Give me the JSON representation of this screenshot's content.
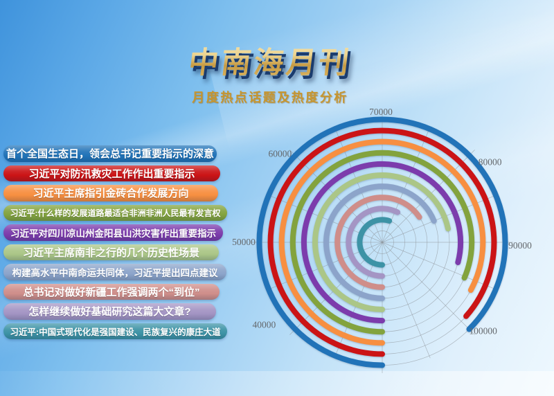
{
  "header": {
    "title": "中南海月刊",
    "subtitle": "月度热点话题及热度分析"
  },
  "chart_data": {
    "type": "radial-bar",
    "title": "月度热点话题及热度分析",
    "angular_axis": {
      "min": 30000,
      "max": 110000,
      "tick_interval": 10000,
      "start": "bottom",
      "direction": "clockwise",
      "tick_labels": [
        "40000",
        "50000",
        "60000",
        "70000",
        "80000",
        "90000",
        "100000"
      ]
    },
    "grid": {
      "rings": 11,
      "spokes": 16
    },
    "series": [
      {
        "label": "首个全国生态日，领会总书记重要指示的深意",
        "value": 100000,
        "color": "#2173b8"
      },
      {
        "label": "习近平对防汛救灾工作作出重要指示",
        "value": 99200,
        "color": "#cb1416"
      },
      {
        "label": "习近平主席指引金砖合作发展方向",
        "value": 96300,
        "color": "#f78f41"
      },
      {
        "label": "习近平:什么样的发展道路最适合非洲非洲人民最有发言权",
        "value": 95200,
        "color": "#83a33e"
      },
      {
        "label": "习近平对四川凉山州金阳县山洪灾害作出重要指示",
        "value": 93300,
        "color": "#7c3cac"
      },
      {
        "label": "习近平主席南非之行的几个历史性场景",
        "value": 87400,
        "color": "#abc687"
      },
      {
        "label": "构建高水平中南命运共同体，习近平提出四点建议",
        "value": 85000,
        "color": "#8ca4ca"
      },
      {
        "label": "总书记对做好新疆工作强调两个“到位”",
        "value": 82400,
        "color": "#cf8e8a"
      },
      {
        "label": "怎样继续做好基础研究这篇大文章?",
        "value": 76000,
        "color": "#a495c4"
      },
      {
        "label": "习近平:中国式现代化是强国建设、民族复兴的康庄大道",
        "value": 74000,
        "color": "#3d93a6"
      }
    ]
  }
}
